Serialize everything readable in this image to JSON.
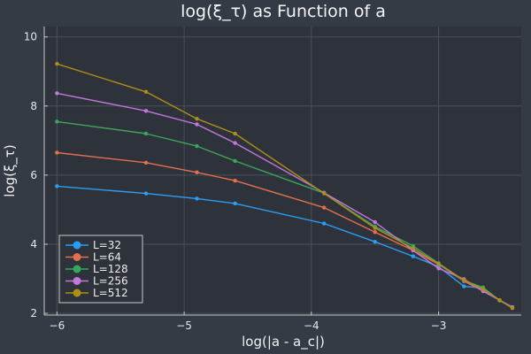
{
  "chart_data": {
    "type": "line",
    "title": "log(ξ_τ) as Function of a",
    "xlabel": "log(|a - a_c|)",
    "ylabel": "log(ξ_τ)",
    "xlim": [
      -6.1,
      -2.35
    ],
    "ylim": [
      1.95,
      10.3
    ],
    "xticks": [
      -6,
      -5,
      -4,
      -3
    ],
    "yticks": [
      2,
      4,
      6,
      8,
      10
    ],
    "grid": true,
    "legend_position": "bottom-left",
    "series": [
      {
        "name": "L=32",
        "color": "#2a9df4",
        "x": [
          -6.0,
          -5.3,
          -4.9,
          -4.6,
          -3.9,
          -3.5,
          -3.2,
          -3.0,
          -2.8,
          -2.65,
          -2.52,
          -2.42
        ],
        "y": [
          5.68,
          5.47,
          5.32,
          5.18,
          4.6,
          4.07,
          3.65,
          3.35,
          2.78,
          2.73,
          2.37,
          2.18
        ]
      },
      {
        "name": "L=64",
        "color": "#e3704a",
        "x": [
          -6.0,
          -5.3,
          -4.9,
          -4.6,
          -3.9,
          -3.5,
          -3.2,
          -3.0,
          -2.8,
          -2.65,
          -2.52,
          -2.42
        ],
        "y": [
          6.65,
          6.36,
          6.08,
          5.84,
          5.06,
          4.35,
          3.82,
          3.42,
          2.93,
          2.65,
          2.38,
          2.17
        ]
      },
      {
        "name": "L=128",
        "color": "#3aa55d",
        "x": [
          -6.0,
          -5.3,
          -4.9,
          -4.6,
          -3.9,
          -3.5,
          -3.2,
          -3.0,
          -2.8,
          -2.65,
          -2.52,
          -2.42
        ],
        "y": [
          7.55,
          7.2,
          6.84,
          6.41,
          5.48,
          4.51,
          3.95,
          3.45,
          2.95,
          2.75,
          2.37,
          2.16
        ]
      },
      {
        "name": "L=256",
        "color": "#c277dc",
        "x": [
          -6.0,
          -5.3,
          -4.9,
          -4.6,
          -3.9,
          -3.5,
          -3.2,
          -3.0,
          -2.8,
          -2.65,
          -2.52,
          -2.42
        ],
        "y": [
          8.37,
          7.86,
          7.47,
          6.93,
          5.49,
          4.64,
          3.82,
          3.3,
          2.99,
          2.64,
          2.38,
          2.18
        ]
      },
      {
        "name": "L=512",
        "color": "#ac8e18",
        "x": [
          -6.0,
          -5.3,
          -4.9,
          -4.6,
          -3.9,
          -3.5,
          -3.2,
          -3.0,
          -2.8,
          -2.65,
          -2.52,
          -2.42
        ],
        "y": [
          9.22,
          8.41,
          7.63,
          7.2,
          5.47,
          4.47,
          3.88,
          3.43,
          2.96,
          2.7,
          2.38,
          2.15
        ]
      }
    ]
  }
}
